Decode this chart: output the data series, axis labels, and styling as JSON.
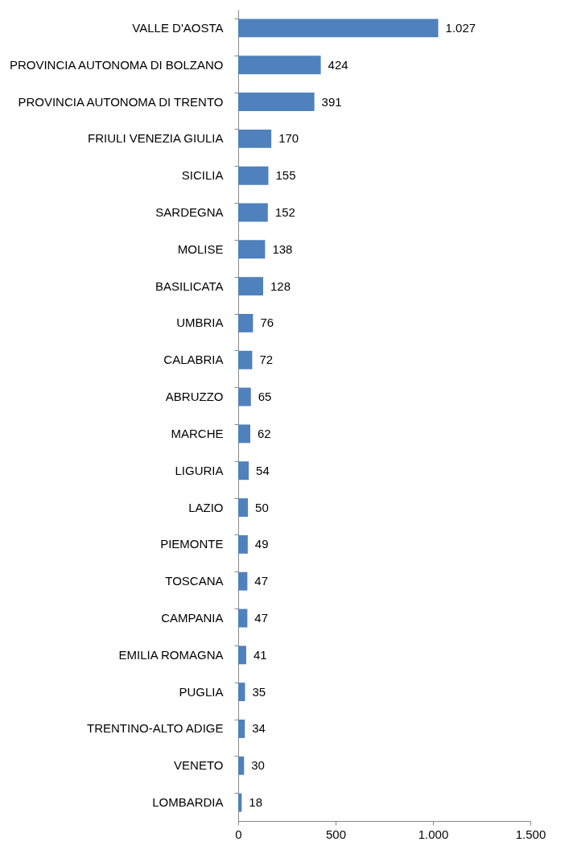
{
  "chart_data": {
    "type": "bar",
    "orientation": "horizontal",
    "categories": [
      "VALLE D'AOSTA",
      "PROVINCIA AUTONOMA DI BOLZANO",
      "PROVINCIA AUTONOMA DI TRENTO",
      "FRIULI VENEZIA GIULIA",
      "SICILIA",
      "SARDEGNA",
      "MOLISE",
      "BASILICATA",
      "UMBRIA",
      "CALABRIA",
      "ABRUZZO",
      "MARCHE",
      "LIGURIA",
      "LAZIO",
      "PIEMONTE",
      "TOSCANA",
      "CAMPANIA",
      "EMILIA ROMAGNA",
      "PUGLIA",
      "TRENTINO-ALTO ADIGE",
      "VENETO",
      "LOMBARDIA"
    ],
    "values": [
      1027,
      424,
      391,
      170,
      155,
      152,
      138,
      128,
      76,
      72,
      65,
      62,
      54,
      50,
      49,
      47,
      47,
      41,
      35,
      34,
      30,
      18
    ],
    "value_labels": [
      "1.027",
      "424",
      "391",
      "170",
      "155",
      "152",
      "138",
      "128",
      "76",
      "72",
      "65",
      "62",
      "54",
      "50",
      "49",
      "47",
      "47",
      "41",
      "35",
      "34",
      "30",
      "18"
    ],
    "color": "#4f81bd",
    "xlim": [
      0,
      1500
    ],
    "xticks": [
      0,
      500,
      {
        "value": 1000,
        "label": "1.000"
      },
      {
        "value": 1500,
        "label": "1.500"
      }
    ],
    "grid": false
  }
}
